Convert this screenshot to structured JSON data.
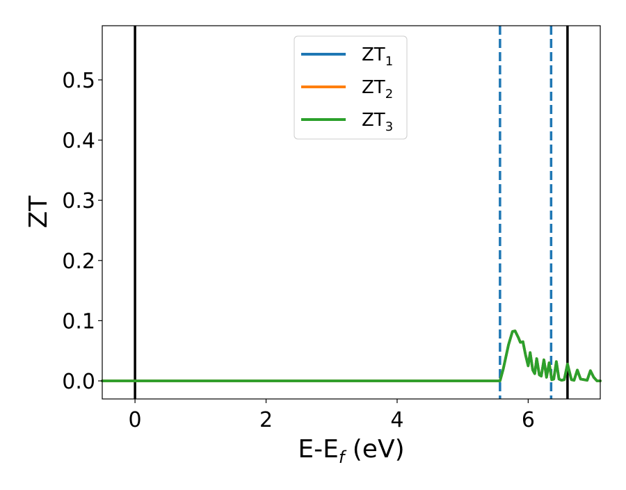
{
  "chart_data": {
    "type": "line",
    "xlabel_main": "E-E",
    "xlabel_sub": "f",
    "xlabel_tail": " (eV)",
    "ylabel": "ZT",
    "xlim": [
      -0.5,
      7.1
    ],
    "ylim": [
      -0.03,
      0.59
    ],
    "xticks": [
      0,
      2,
      4,
      6
    ],
    "xtick_labels": [
      "0",
      "2",
      "4",
      "6"
    ],
    "yticks": [
      0.0,
      0.1,
      0.2,
      0.3,
      0.4,
      0.5
    ],
    "ytick_labels": [
      "0.0",
      "0.1",
      "0.2",
      "0.3",
      "0.4",
      "0.5"
    ],
    "grid": false,
    "legend_position": "upper center",
    "vlines": [
      {
        "x": 0.0,
        "style": "solid",
        "color": "#000000"
      },
      {
        "x": 5.57,
        "style": "dashed",
        "color": "#1f77b4"
      },
      {
        "x": 6.35,
        "style": "dashed",
        "color": "#1f77b4"
      },
      {
        "x": 6.6,
        "style": "solid",
        "color": "#000000"
      }
    ],
    "series": [
      {
        "name_main": "ZT",
        "name_sub": "1",
        "color": "#1f77b4"
      },
      {
        "name_main": "ZT",
        "name_sub": "2",
        "color": "#ff7f0e"
      },
      {
        "name_main": "ZT",
        "name_sub": "3",
        "color": "#2ca02c"
      }
    ],
    "x": [
      -0.5,
      5.57,
      5.62,
      5.7,
      5.76,
      5.8,
      5.85,
      5.88,
      5.92,
      5.96,
      6.0,
      6.03,
      6.07,
      6.1,
      6.13,
      6.17,
      6.2,
      6.24,
      6.28,
      6.32,
      6.36,
      6.39,
      6.43,
      6.47,
      6.51,
      6.55,
      6.6,
      6.66,
      6.7,
      6.75,
      6.8,
      6.85,
      6.9,
      6.95,
      7.0,
      7.05,
      7.1
    ],
    "y": [
      0.0,
      0.0,
      0.02,
      0.06,
      0.082,
      0.083,
      0.072,
      0.064,
      0.065,
      0.043,
      0.025,
      0.047,
      0.018,
      0.012,
      0.037,
      0.01,
      0.008,
      0.035,
      0.006,
      0.03,
      0.002,
      0.003,
      0.032,
      0.003,
      0.001,
      0.002,
      0.028,
      0.002,
      0.001,
      0.018,
      0.003,
      0.002,
      0.001,
      0.017,
      0.006,
      0.0,
      0.0
    ]
  }
}
